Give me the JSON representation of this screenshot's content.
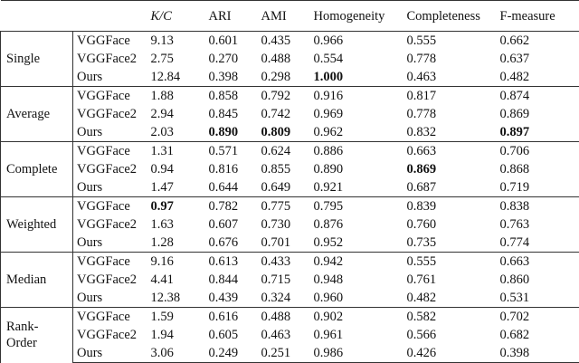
{
  "table": {
    "header": [
      "K/C",
      "ARI",
      "AMI",
      "Homogeneity",
      "Completeness",
      "F-measure"
    ],
    "groups": [
      {
        "label": "Single",
        "rows": [
          {
            "method": "VGGFace",
            "cells": [
              {
                "text": "9.13"
              },
              {
                "text": "0.601"
              },
              {
                "text": "0.435"
              },
              {
                "text": "0.966"
              },
              {
                "text": "0.555"
              },
              {
                "text": "0.662"
              }
            ]
          },
          {
            "method": "VGGFace2",
            "cells": [
              {
                "text": "2.75"
              },
              {
                "text": "0.270"
              },
              {
                "text": "0.488"
              },
              {
                "text": "0.554"
              },
              {
                "text": "0.778"
              },
              {
                "text": "0.637"
              }
            ]
          },
          {
            "method": "Ours",
            "cells": [
              {
                "text": "12.84"
              },
              {
                "text": "0.398"
              },
              {
                "text": "0.298"
              },
              {
                "text": "1.000",
                "bold": true
              },
              {
                "text": "0.463"
              },
              {
                "text": "0.482"
              }
            ]
          }
        ]
      },
      {
        "label": "Average",
        "rows": [
          {
            "method": "VGGFace",
            "cells": [
              {
                "text": "1.88"
              },
              {
                "text": "0.858"
              },
              {
                "text": "0.792"
              },
              {
                "text": "0.916"
              },
              {
                "text": "0.817"
              },
              {
                "text": "0.874"
              }
            ]
          },
          {
            "method": "VGGFace2",
            "cells": [
              {
                "text": "2.94"
              },
              {
                "text": "0.845"
              },
              {
                "text": "0.742"
              },
              {
                "text": "0.969"
              },
              {
                "text": "0.778"
              },
              {
                "text": "0.869"
              }
            ]
          },
          {
            "method": "Ours",
            "cells": [
              {
                "text": "2.03"
              },
              {
                "text": "0.890",
                "bold": true
              },
              {
                "text": "0.809",
                "bold": true
              },
              {
                "text": "0.962"
              },
              {
                "text": "0.832"
              },
              {
                "text": "0.897",
                "bold": true
              }
            ]
          }
        ]
      },
      {
        "label": "Complete",
        "rows": [
          {
            "method": "VGGFace",
            "cells": [
              {
                "text": "1.31"
              },
              {
                "text": "0.571"
              },
              {
                "text": "0.624"
              },
              {
                "text": "0.886"
              },
              {
                "text": "0.663"
              },
              {
                "text": "0.706"
              }
            ]
          },
          {
            "method": "VGGFace2",
            "cells": [
              {
                "text": "0.94"
              },
              {
                "text": "0.816"
              },
              {
                "text": "0.855"
              },
              {
                "text": "0.890"
              },
              {
                "text": "0.869",
                "bold": true
              },
              {
                "text": "0.868"
              }
            ]
          },
          {
            "method": "Ours",
            "cells": [
              {
                "text": "1.47"
              },
              {
                "text": "0.644"
              },
              {
                "text": "0.649"
              },
              {
                "text": "0.921"
              },
              {
                "text": "0.687"
              },
              {
                "text": "0.719"
              }
            ]
          }
        ]
      },
      {
        "label": "Weighted",
        "rows": [
          {
            "method": "VGGFace",
            "cells": [
              {
                "text": "0.97",
                "bold": true
              },
              {
                "text": "0.782"
              },
              {
                "text": "0.775"
              },
              {
                "text": "0.795"
              },
              {
                "text": "0.839"
              },
              {
                "text": "0.838"
              }
            ]
          },
          {
            "method": "VGGFace2",
            "cells": [
              {
                "text": "1.63"
              },
              {
                "text": "0.607"
              },
              {
                "text": "0.730"
              },
              {
                "text": "0.876"
              },
              {
                "text": "0.760"
              },
              {
                "text": "0.763"
              }
            ]
          },
          {
            "method": "Ours",
            "cells": [
              {
                "text": "1.28"
              },
              {
                "text": "0.676"
              },
              {
                "text": "0.701"
              },
              {
                "text": "0.952"
              },
              {
                "text": "0.735"
              },
              {
                "text": "0.774"
              }
            ]
          }
        ]
      },
      {
        "label": "Median",
        "rows": [
          {
            "method": "VGGFace",
            "cells": [
              {
                "text": "9.16"
              },
              {
                "text": "0.613"
              },
              {
                "text": "0.433"
              },
              {
                "text": "0.942"
              },
              {
                "text": "0.555"
              },
              {
                "text": "0.663"
              }
            ]
          },
          {
            "method": "VGGFace2",
            "cells": [
              {
                "text": "4.41"
              },
              {
                "text": "0.844"
              },
              {
                "text": "0.715"
              },
              {
                "text": "0.948"
              },
              {
                "text": "0.761"
              },
              {
                "text": "0.860"
              }
            ]
          },
          {
            "method": "Ours",
            "cells": [
              {
                "text": "12.38"
              },
              {
                "text": "0.439"
              },
              {
                "text": "0.324"
              },
              {
                "text": "0.960"
              },
              {
                "text": "0.482"
              },
              {
                "text": "0.531"
              }
            ]
          }
        ]
      },
      {
        "label": "Rank-\nOrder",
        "rows": [
          {
            "method": "VGGFace",
            "cells": [
              {
                "text": "1.59"
              },
              {
                "text": "0.616"
              },
              {
                "text": "0.488"
              },
              {
                "text": "0.902"
              },
              {
                "text": "0.582"
              },
              {
                "text": "0.702"
              }
            ]
          },
          {
            "method": "VGGFace2",
            "cells": [
              {
                "text": "1.94"
              },
              {
                "text": "0.605"
              },
              {
                "text": "0.463"
              },
              {
                "text": "0.961"
              },
              {
                "text": "0.566"
              },
              {
                "text": "0.682"
              }
            ]
          },
          {
            "method": "Ours",
            "cells": [
              {
                "text": "3.06"
              },
              {
                "text": "0.249"
              },
              {
                "text": "0.251"
              },
              {
                "text": "0.986"
              },
              {
                "text": "0.426"
              },
              {
                "text": "0.398"
              }
            ]
          }
        ]
      }
    ]
  }
}
